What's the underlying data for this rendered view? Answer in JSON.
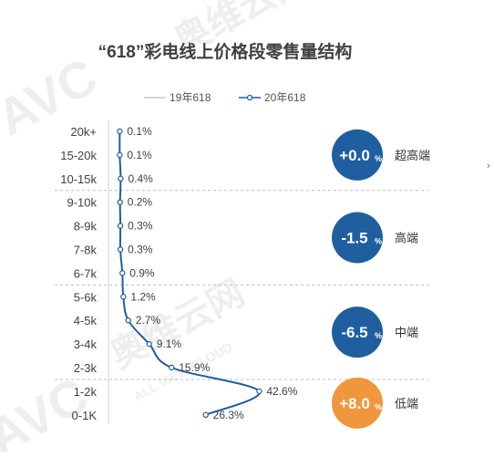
{
  "watermark": {
    "logo": "AVC",
    "cn": "奥维云网",
    "en": "ALL VIEW CLOUD"
  },
  "chart_data": {
    "type": "line",
    "title": "“618”彩电线上价格段零售量结构",
    "categories": [
      "20k+",
      "15-20k",
      "10-15k",
      "9-10k",
      "8-9k",
      "7-8k",
      "6-7k",
      "5-6k",
      "4-5k",
      "3-4k",
      "2-3k",
      "1-2k",
      "0-1K"
    ],
    "series": [
      {
        "name": "19年618",
        "values": [
          null,
          null,
          null,
          null,
          null,
          null,
          null,
          null,
          null,
          null,
          null,
          null,
          null
        ],
        "color": "#c8c8c8"
      },
      {
        "name": "20年618",
        "values": [
          0.1,
          0.1,
          0.4,
          0.2,
          0.3,
          0.3,
          0.9,
          1.2,
          2.7,
          9.1,
          15.9,
          42.6,
          26.3
        ],
        "color": "#1f5f9f"
      }
    ],
    "data_labels": [
      "0.1%",
      "0.1%",
      "0.4%",
      "0.2%",
      "0.3%",
      "0.3%",
      "0.9%",
      "1.2%",
      "2.7%",
      "9.1%",
      "15.9%",
      "42.6%",
      "26.3%"
    ],
    "xlim": [
      0,
      50
    ],
    "segments": [
      {
        "change": "+0.0",
        "unit": "%",
        "label": "超高端",
        "color": "#1f5f9f",
        "rows": [
          0,
          2
        ]
      },
      {
        "change": "-1.5",
        "unit": "%",
        "label": "高端",
        "color": "#1f5f9f",
        "rows": [
          3,
          6
        ]
      },
      {
        "change": "-6.5",
        "unit": "%",
        "label": "中端",
        "color": "#1f5f9f",
        "rows": [
          7,
          10
        ]
      },
      {
        "change": "+8.0",
        "unit": "%",
        "label": "低端",
        "color": "#f0963c",
        "rows": [
          11,
          12
        ]
      }
    ],
    "legend_position": "top",
    "grid": false
  }
}
